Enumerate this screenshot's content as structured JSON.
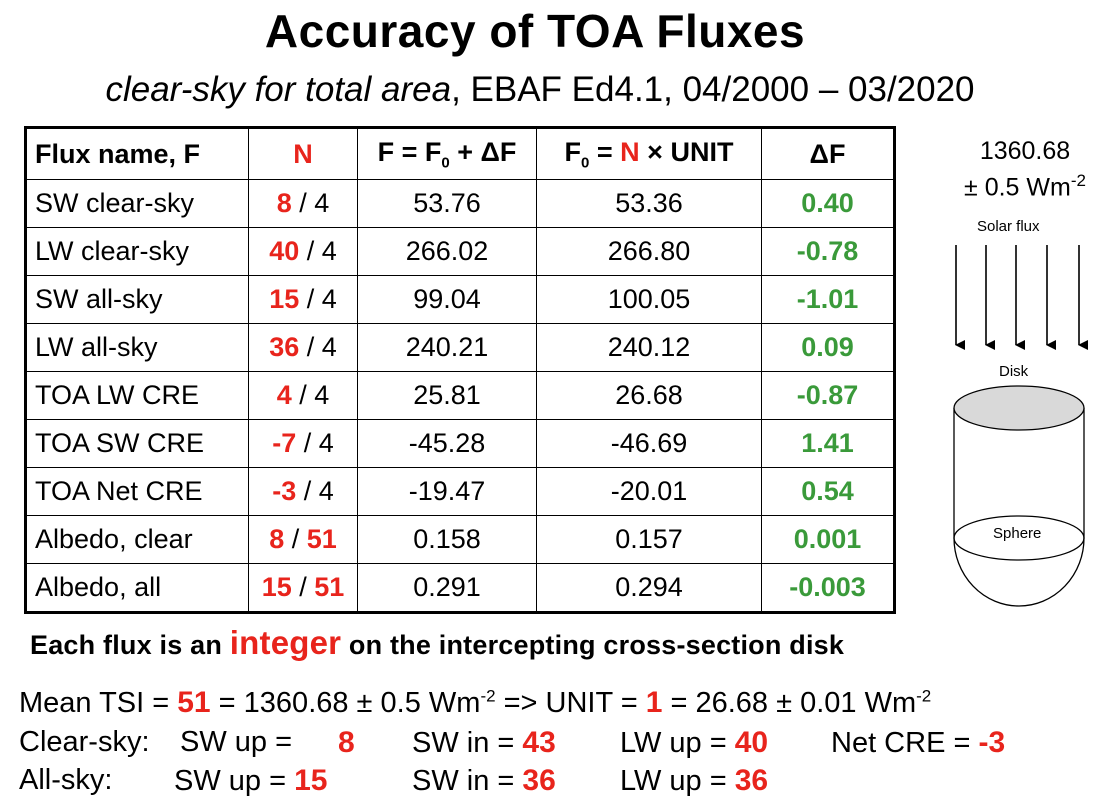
{
  "title": "Accuracy of TOA Fluxes",
  "subtitle": {
    "italic": "clear-sky for total area",
    "rest": ", EBAF Ed4.1, 04/2000 – 03/2020"
  },
  "table": {
    "headers": {
      "name": "Flux name, F",
      "n": "N",
      "f": "F = F",
      "f_sub": "0",
      "f_rest": " + ΔF",
      "f0": "F",
      "f0_sub": "0",
      "f0_eq": " = ",
      "f0_n": "N",
      "f0_rest": " × UNIT",
      "df": "ΔF"
    },
    "rows": [
      {
        "name": "SW clear-sky",
        "n": "8",
        "sep": " / ",
        "d": "4",
        "f": "53.76",
        "f0": "53.36",
        "df": "0.40"
      },
      {
        "name": "LW clear-sky",
        "n": "40",
        "sep": " / ",
        "d": "4",
        "f": "266.02",
        "f0": "266.80",
        "df": "-0.78"
      },
      {
        "name": "SW all-sky",
        "n": "15",
        "sep": " / ",
        "d": "4",
        "f": "99.04",
        "f0": "100.05",
        "df": "-1.01"
      },
      {
        "name": "LW all-sky",
        "n": "36",
        "sep": " / ",
        "d": "4",
        "f": "240.21",
        "f0": "240.12",
        "df": "0.09"
      },
      {
        "name": "TOA LW CRE",
        "n": "4",
        "sep": " / ",
        "d": "4",
        "f": "25.81",
        "f0": "26.68",
        "df": "-0.87"
      },
      {
        "name": "TOA SW CRE",
        "n": "-7",
        "sep": " / ",
        "d": "4",
        "f": "-45.28",
        "f0": "-46.69",
        "df": "1.41"
      },
      {
        "name": "TOA Net CRE",
        "n": "-3",
        "sep": " / ",
        "d": "4",
        "f": "-19.47",
        "f0": "-20.01",
        "df": "0.54"
      },
      {
        "name": "Albedo, clear",
        "n": "8",
        "sep": " / ",
        "d": "51",
        "f": "0.158",
        "f0": "0.157",
        "df": "0.001"
      },
      {
        "name": "Albedo, all",
        "n": "15",
        "sep": " / ",
        "d": "51",
        "f": "0.291",
        "f0": "0.294",
        "df": "-0.003"
      }
    ]
  },
  "diagram": {
    "tsi_line1": "1360.68",
    "tsi_line2": "± 0.5 Wm",
    "tsi_sup": "-2",
    "solar_flux": "Solar flux",
    "disk": "Disk",
    "sphere": "Sphere"
  },
  "note": {
    "pre": "Each flux is an ",
    "emph": "integer",
    "post": " on the intercepting cross-section disk"
  },
  "bottom": {
    "line1": {
      "a": "Mean TSI = ",
      "b": "51",
      "c": " = 1360.68 ± 0.5 Wm",
      "sup1": "-2",
      "d": " => UNIT = ",
      "e": "1",
      "f": " = 26.68 ± 0.01 Wm",
      "sup2": "-2"
    },
    "line2": {
      "label": "Clear-sky:",
      "sw_up": "SW up =",
      "sw_up_v": "8",
      "sw_in": "SW in = ",
      "sw_in_v": "43",
      "lw_up": "LW up = ",
      "lw_up_v": "40",
      "cre": "Net CRE = ",
      "cre_v": "-3"
    },
    "line3": {
      "label": "All-sky:",
      "sw_up": "SW up  = ",
      "sw_up_v": "15",
      "sw_in": "SW in = ",
      "sw_in_v": "36",
      "lw_up": "LW up = ",
      "lw_up_v": "36"
    }
  },
  "colors": {
    "accent_red": "#e8241c",
    "accent_green": "#3a9a3a",
    "disk_fill": "#d9d9d9"
  }
}
